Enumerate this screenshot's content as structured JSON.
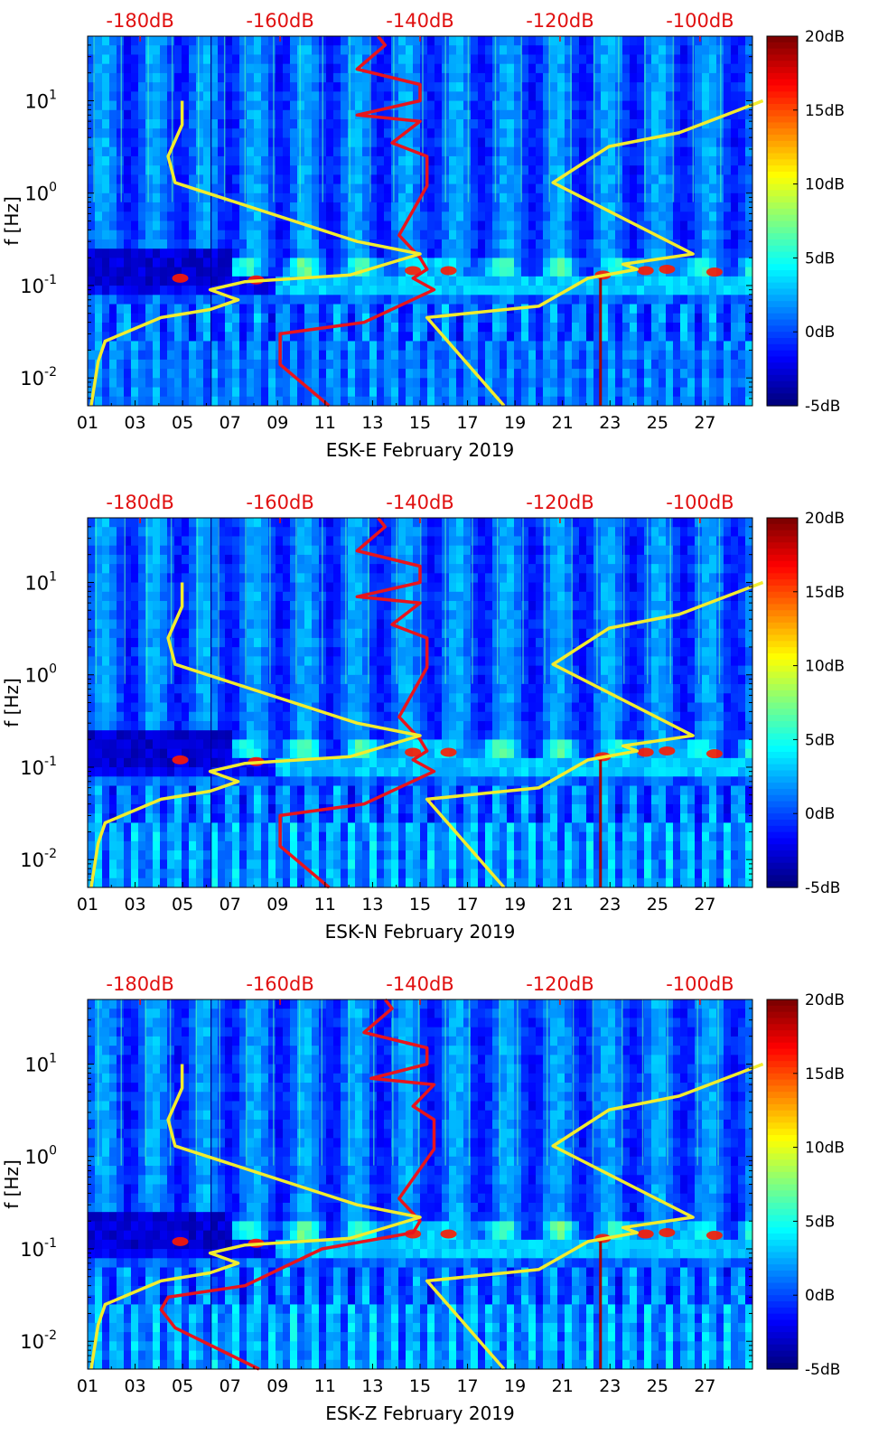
{
  "colors": {
    "top_axis": "#e01010",
    "psd_line": "#e8141c",
    "noise_model": "#f2ec2e",
    "axis": "#000000"
  },
  "chart_data": [
    {
      "type": "heatmap",
      "title": "",
      "xlabel": "ESK-E February 2019",
      "ylabel": "f [Hz]",
      "xlim": [
        1,
        29
      ],
      "ylim": [
        0.005,
        50
      ],
      "yscale": "log",
      "x_ticks": [
        "01",
        "03",
        "05",
        "07",
        "09",
        "11",
        "13",
        "15",
        "17",
        "19",
        "21",
        "23",
        "25",
        "27"
      ],
      "y_ticks": [
        "10^-2",
        "10^-1",
        "10^0",
        "10^1"
      ],
      "top_axis_ticks": [
        "-180dB",
        "-160dB",
        "-140dB",
        "-120dB",
        "-100dB"
      ],
      "top_axis_range_dB": [
        -187.5,
        -92.5
      ],
      "colorbar": {
        "ticks": [
          "20dB",
          "15dB",
          "10dB",
          "5dB",
          "0dB",
          "-5dB"
        ],
        "range": [
          -5,
          20
        ]
      },
      "series": [
        {
          "name": "",
          "role": "red-psd",
          "x_dB": [
            -153,
            -160,
            -160,
            -148,
            -138,
            -141,
            -139,
            -140,
            -143,
            -139,
            -139,
            -144,
            -140,
            -149,
            -140,
            -140,
            -149,
            -145,
            -146
          ],
          "freq_hz": [
            0.005,
            0.014,
            0.03,
            0.04,
            0.09,
            0.12,
            0.15,
            0.2,
            0.35,
            1.2,
            2.5,
            3.5,
            6,
            7,
            10,
            15,
            22,
            40,
            50
          ]
        },
        {
          "name": "",
          "role": "yellow-low-noise",
          "x_dB": [
            -187,
            -186,
            -185,
            -177,
            -170,
            -166,
            -170,
            -165,
            -150,
            -140,
            -149,
            -175,
            -176,
            -174,
            -174
          ],
          "freq_hz": [
            0.005,
            0.015,
            0.025,
            0.045,
            0.055,
            0.07,
            0.09,
            0.11,
            0.13,
            0.22,
            0.3,
            1.3,
            2.5,
            5.5,
            10
          ]
        },
        {
          "name": "",
          "role": "yellow-high-noise",
          "x_dB": [
            -128,
            -139,
            -123,
            -116,
            -109,
            -111,
            -101,
            -121,
            -113,
            -103,
            -91
          ],
          "freq_hz": [
            0.005,
            0.045,
            0.06,
            0.12,
            0.15,
            0.17,
            0.22,
            1.3,
            3.2,
            4.5,
            10
          ]
        }
      ]
    },
    {
      "type": "heatmap",
      "title": "",
      "xlabel": "ESK-N February 2019",
      "ylabel": "f [Hz]",
      "xlim": [
        1,
        29
      ],
      "ylim": [
        0.005,
        50
      ],
      "yscale": "log",
      "x_ticks": [
        "01",
        "03",
        "05",
        "07",
        "09",
        "11",
        "13",
        "15",
        "17",
        "19",
        "21",
        "23",
        "25",
        "27"
      ],
      "y_ticks": [
        "10^-2",
        "10^-1",
        "10^0",
        "10^1"
      ],
      "top_axis_ticks": [
        "-180dB",
        "-160dB",
        "-140dB",
        "-120dB",
        "-100dB"
      ],
      "top_axis_range_dB": [
        -187.5,
        -92.5
      ],
      "colorbar": {
        "ticks": [
          "20dB",
          "15dB",
          "10dB",
          "5dB",
          "0dB",
          "-5dB"
        ],
        "range": [
          -5,
          20
        ]
      },
      "series": [
        {
          "name": "",
          "role": "red-psd",
          "x_dB": [
            -153,
            -160,
            -160,
            -148,
            -138,
            -141,
            -139,
            -140,
            -143,
            -139,
            -139,
            -144,
            -140,
            -149,
            -140,
            -140,
            -149,
            -145,
            -146
          ],
          "freq_hz": [
            0.005,
            0.014,
            0.03,
            0.04,
            0.09,
            0.12,
            0.15,
            0.2,
            0.35,
            1.2,
            2.5,
            3.5,
            6,
            7,
            10,
            15,
            22,
            40,
            50
          ]
        },
        {
          "name": "",
          "role": "yellow-low-noise",
          "x_dB": [
            -187,
            -186,
            -185,
            -177,
            -170,
            -166,
            -170,
            -165,
            -150,
            -140,
            -149,
            -175,
            -176,
            -174,
            -174
          ],
          "freq_hz": [
            0.005,
            0.015,
            0.025,
            0.045,
            0.055,
            0.07,
            0.09,
            0.11,
            0.13,
            0.22,
            0.3,
            1.3,
            2.5,
            5.5,
            10
          ]
        },
        {
          "name": "",
          "role": "yellow-high-noise",
          "x_dB": [
            -128,
            -139,
            -123,
            -116,
            -109,
            -111,
            -101,
            -121,
            -113,
            -103,
            -91
          ],
          "freq_hz": [
            0.005,
            0.045,
            0.06,
            0.12,
            0.15,
            0.17,
            0.22,
            1.3,
            3.2,
            4.5,
            10
          ]
        }
      ]
    },
    {
      "type": "heatmap",
      "title": "",
      "xlabel": "ESK-Z February 2019",
      "ylabel": "f [Hz]",
      "xlim": [
        1,
        29
      ],
      "ylim": [
        0.005,
        50
      ],
      "yscale": "log",
      "x_ticks": [
        "01",
        "03",
        "05",
        "07",
        "09",
        "11",
        "13",
        "15",
        "17",
        "19",
        "21",
        "23",
        "25",
        "27"
      ],
      "y_ticks": [
        "10^-2",
        "10^-1",
        "10^0",
        "10^1"
      ],
      "top_axis_ticks": [
        "-180dB",
        "-160dB",
        "-140dB",
        "-120dB",
        "-100dB"
      ],
      "top_axis_range_dB": [
        -187.5,
        -92.5
      ],
      "colorbar": {
        "ticks": [
          "20dB",
          "15dB",
          "10dB",
          "5dB",
          "0dB",
          "-5dB"
        ],
        "range": [
          -5,
          20
        ]
      },
      "series": [
        {
          "name": "",
          "role": "red-psd",
          "x_dB": [
            -163,
            -175,
            -177,
            -176,
            -165,
            -154,
            -141,
            -140,
            -143,
            -138,
            -138,
            -141,
            -138,
            -147,
            -139,
            -139,
            -148,
            -144,
            -145
          ],
          "freq_hz": [
            0.005,
            0.014,
            0.022,
            0.03,
            0.04,
            0.1,
            0.15,
            0.2,
            0.35,
            1.2,
            2.5,
            3.5,
            6,
            7,
            10,
            15,
            22,
            40,
            50
          ]
        },
        {
          "name": "",
          "role": "yellow-low-noise",
          "x_dB": [
            -187,
            -186,
            -185,
            -177,
            -170,
            -166,
            -170,
            -165,
            -150,
            -140,
            -149,
            -175,
            -176,
            -174,
            -174
          ],
          "freq_hz": [
            0.005,
            0.015,
            0.025,
            0.045,
            0.055,
            0.07,
            0.09,
            0.11,
            0.13,
            0.22,
            0.3,
            1.3,
            2.5,
            5.5,
            10
          ]
        },
        {
          "name": "",
          "role": "yellow-high-noise",
          "x_dB": [
            -128,
            -139,
            -123,
            -116,
            -109,
            -111,
            -101,
            -121,
            -113,
            -103,
            -91
          ],
          "freq_hz": [
            0.005,
            0.045,
            0.06,
            0.12,
            0.15,
            0.17,
            0.22,
            1.3,
            3.2,
            4.5,
            10
          ]
        }
      ]
    }
  ]
}
